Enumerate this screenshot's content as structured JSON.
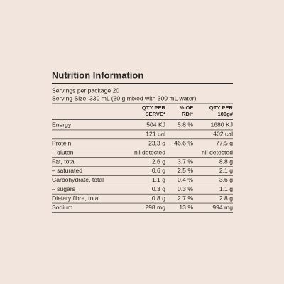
{
  "title": "Nutrition Information",
  "servings": [
    "Servings per package 20",
    "Serving Size: 330 mL (30 g mixed with 300 mL water)"
  ],
  "columns": [
    [
      "QTY PER",
      "SERVE*"
    ],
    [
      "% OF",
      "RDI*"
    ],
    [
      "QTY PER",
      "100g#"
    ]
  ],
  "rows": [
    [
      "Energy",
      "504 KJ",
      "5.8 %",
      "1680 KJ"
    ],
    [
      null,
      "121 cal",
      null,
      "402 cal"
    ],
    [
      "Protein",
      "23.3 g",
      "46.6 %",
      "77.5 g"
    ],
    [
      "– gluten",
      "nil detected",
      null,
      "nil detected"
    ],
    [
      "Fat, total",
      "2.6 g",
      "3.7 %",
      "8.8 g"
    ],
    [
      "– saturated",
      "0.6 g",
      "2.5 %",
      "2.1 g"
    ],
    [
      "Carbohydrate, total",
      "1.1 g",
      "0.4 %",
      "3.6 g"
    ],
    [
      "– sugars",
      "0.3 g",
      "0.3 %",
      "1.1 g"
    ],
    [
      "Dietary fibre, total",
      "0.8 g",
      "2.7 %",
      "2.8 g"
    ],
    [
      "Sodium",
      "298 mg",
      "13 %",
      "994 mg"
    ]
  ]
}
